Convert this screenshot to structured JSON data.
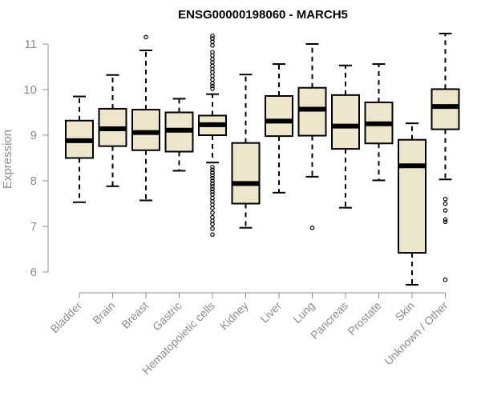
{
  "chart_data": {
    "type": "box",
    "title": "ENSG00000198060 - MARCH5",
    "ylabel": "Expression",
    "ylim": [
      5.55,
      11.35
    ],
    "yticks": [
      6,
      7,
      8,
      9,
      10,
      11
    ],
    "box_fill": "#ede6cd",
    "box_stroke": "#000000",
    "axis_color": "#8c8c8c",
    "categories": [
      "Bladder",
      "Brain",
      "Breast",
      "Gastric",
      "Hematopoietic cells",
      "Kidney",
      "Liver",
      "Lung",
      "Pancreas",
      "Prostate",
      "Skin",
      "Unknown / Other"
    ],
    "boxes": [
      {
        "min": 7.53,
        "q1": 8.5,
        "median": 8.88,
        "q3": 9.32,
        "max": 9.85,
        "outliers": []
      },
      {
        "min": 7.88,
        "q1": 8.76,
        "median": 9.14,
        "q3": 9.58,
        "max": 10.32,
        "outliers": []
      },
      {
        "min": 7.57,
        "q1": 8.67,
        "median": 9.06,
        "q3": 9.56,
        "max": 10.86,
        "outliers": [
          11.15
        ]
      },
      {
        "min": 8.22,
        "q1": 8.64,
        "median": 9.11,
        "q3": 9.5,
        "max": 9.8,
        "outliers": []
      },
      {
        "min": 8.4,
        "q1": 9.0,
        "median": 9.23,
        "q3": 9.43,
        "max": 9.9,
        "outliers": [
          11.18,
          11.12,
          11.05,
          10.97,
          10.82,
          10.75,
          10.67,
          10.6,
          10.52,
          10.45,
          10.38,
          10.3,
          10.22,
          10.14,
          10.08,
          10.02,
          8.3,
          8.24,
          8.18,
          8.12,
          8.06,
          8.0,
          7.94,
          7.88,
          7.82,
          7.76,
          7.7,
          7.62,
          7.55,
          7.48,
          7.4,
          7.3,
          7.2,
          7.12,
          7.05,
          6.95,
          6.82
        ]
      },
      {
        "min": 6.97,
        "q1": 7.5,
        "median": 7.94,
        "q3": 8.83,
        "max": 10.33,
        "outliers": []
      },
      {
        "min": 7.74,
        "q1": 8.98,
        "median": 9.31,
        "q3": 9.86,
        "max": 10.56,
        "outliers": []
      },
      {
        "min": 8.09,
        "q1": 8.99,
        "median": 9.57,
        "q3": 10.04,
        "max": 11.0,
        "outliers": [
          6.97
        ]
      },
      {
        "min": 7.41,
        "q1": 8.7,
        "median": 9.2,
        "q3": 9.88,
        "max": 10.53,
        "outliers": []
      },
      {
        "min": 8.01,
        "q1": 8.82,
        "median": 9.25,
        "q3": 9.72,
        "max": 10.56,
        "outliers": []
      },
      {
        "min": 5.72,
        "q1": 6.42,
        "median": 8.33,
        "q3": 8.9,
        "max": 9.26,
        "outliers": []
      },
      {
        "min": 8.03,
        "q1": 9.13,
        "median": 9.63,
        "q3": 10.01,
        "max": 11.23,
        "outliers": [
          7.6,
          7.5,
          7.35,
          7.15,
          7.1,
          5.83
        ]
      }
    ]
  }
}
